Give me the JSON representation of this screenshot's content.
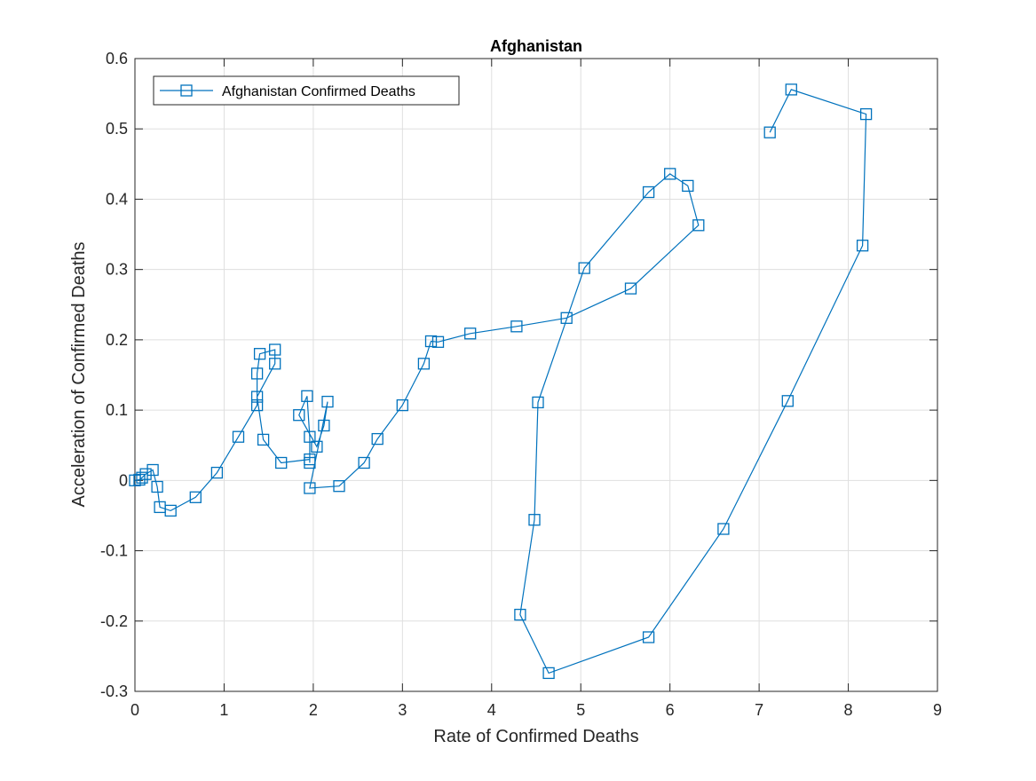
{
  "chart_data": {
    "type": "line",
    "title": "Afghanistan",
    "xlabel": "Rate of Confirmed Deaths",
    "ylabel": "Acceleration of Confirmed Deaths",
    "xlim": [
      0,
      9
    ],
    "ylim": [
      -0.3,
      0.6
    ],
    "xticks": [
      0,
      1,
      2,
      3,
      4,
      5,
      6,
      7,
      8,
      9
    ],
    "xtick_labels": [
      "0",
      "1",
      "2",
      "3",
      "4",
      "5",
      "6",
      "7",
      "8",
      "9"
    ],
    "yticks": [
      -0.3,
      -0.2,
      -0.1,
      0,
      0.1,
      0.2,
      0.3,
      0.4,
      0.5,
      0.6
    ],
    "ytick_labels": [
      "-0.3",
      "-0.2",
      "-0.1",
      "0",
      "0.1",
      "0.2",
      "0.3",
      "0.4",
      "0.5",
      "0.6"
    ],
    "grid": true,
    "legend_position": "top-left",
    "marker": "square",
    "color": "#0072BD",
    "series": [
      {
        "name": "Afghanistan Confirmed Deaths",
        "points": [
          [
            0,
            0
          ],
          [
            0.05,
            0.001
          ],
          [
            0.08,
            0.004
          ],
          [
            0.12,
            0.009
          ],
          [
            0.2,
            0.015
          ],
          [
            0.25,
            -0.009
          ],
          [
            0.28,
            -0.038
          ],
          [
            0.4,
            -0.043
          ],
          [
            0.68,
            -0.024
          ],
          [
            0.92,
            0.011
          ],
          [
            1.16,
            0.062
          ],
          [
            1.37,
            0.107
          ],
          [
            1.37,
            0.152
          ],
          [
            1.4,
            0.18
          ],
          [
            1.57,
            0.186
          ],
          [
            1.57,
            0.166
          ],
          [
            1.37,
            0.119
          ],
          [
            1.44,
            0.058
          ],
          [
            1.64,
            0.025
          ],
          [
            1.96,
            0.03
          ],
          [
            1.96,
            0.025
          ],
          [
            1.96,
            0.062
          ],
          [
            1.93,
            0.12
          ],
          [
            1.84,
            0.093
          ],
          [
            2.04,
            0.048
          ],
          [
            2.12,
            0.078
          ],
          [
            2.16,
            0.112
          ],
          [
            1.96,
            -0.011
          ],
          [
            2.29,
            -0.008
          ],
          [
            2.57,
            0.025
          ],
          [
            2.72,
            0.059
          ],
          [
            3.0,
            0.107
          ],
          [
            3.24,
            0.166
          ],
          [
            3.32,
            0.198
          ],
          [
            3.4,
            0.197
          ],
          [
            3.76,
            0.209
          ],
          [
            4.28,
            0.219
          ],
          [
            4.84,
            0.231
          ],
          [
            5.56,
            0.273
          ],
          [
            6.32,
            0.363
          ],
          [
            6.2,
            0.419
          ],
          [
            6.0,
            0.436
          ],
          [
            5.76,
            0.41
          ],
          [
            5.04,
            0.302
          ],
          [
            4.52,
            0.111
          ],
          [
            4.48,
            -0.056
          ],
          [
            4.32,
            -0.191
          ],
          [
            4.64,
            -0.274
          ],
          [
            5.76,
            -0.223
          ],
          [
            6.6,
            -0.069
          ],
          [
            7.32,
            0.113
          ],
          [
            8.16,
            0.334
          ],
          [
            8.2,
            0.521
          ],
          [
            7.36,
            0.556
          ],
          [
            7.12,
            0.495
          ]
        ]
      }
    ]
  }
}
